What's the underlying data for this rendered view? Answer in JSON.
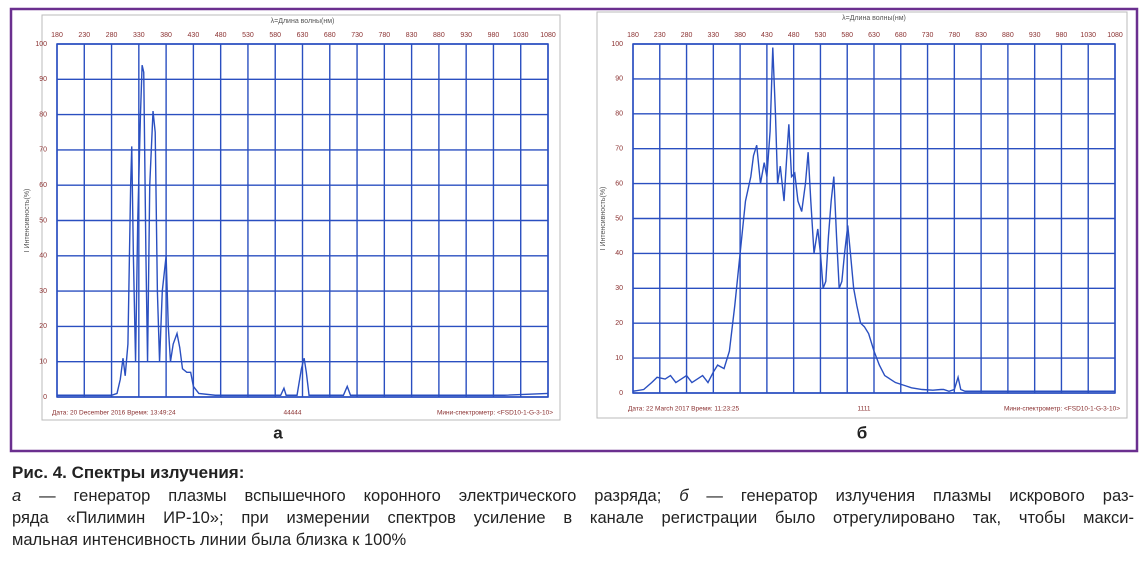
{
  "chart_data": [
    {
      "type": "line",
      "xlabel": "λ=Длина волны(нм)",
      "ylabel": "I Интенсивность(%)",
      "panel_label": "а",
      "footer": {
        "date": "Дата: 20 December 2016   Время: 13:49:24",
        "sample": "44444",
        "device": "Мини-спектрометр: <FSD10-1-G-3-10>"
      },
      "x": [
        180,
        230,
        280,
        290,
        296,
        301,
        305,
        310,
        315,
        317,
        320,
        324,
        328,
        333,
        336,
        339,
        343,
        346,
        350,
        356,
        360,
        364,
        368,
        373,
        380,
        384,
        388,
        393,
        400,
        405,
        410,
        418,
        425,
        430,
        440,
        470,
        590,
        596,
        600,
        620,
        628,
        633,
        637,
        642,
        705,
        712,
        718,
        800,
        1000,
        1080
      ],
      "series": [
        {
          "color": "#2a4fc0",
          "values": [
            0.5,
            0.5,
            0.5,
            1,
            5,
            11,
            6,
            15,
            60,
            71,
            40,
            10,
            50,
            80,
            94,
            92,
            40,
            10,
            60,
            81,
            75,
            30,
            10,
            30,
            40,
            20,
            10,
            15,
            18,
            14,
            8,
            7,
            7,
            3,
            1,
            0.5,
            0.5,
            2.5,
            0.5,
            0.5,
            8,
            11,
            7,
            0.5,
            0.5,
            3,
            0.5,
            0.5,
            0.5,
            1
          ]
        }
      ],
      "xlim": [
        180,
        1080
      ],
      "ylim": [
        0,
        100
      ],
      "xticks": [
        180,
        230,
        280,
        330,
        380,
        430,
        480,
        530,
        580,
        630,
        680,
        730,
        780,
        830,
        880,
        930,
        980,
        1030,
        1080
      ],
      "yticks": [
        0,
        10,
        20,
        30,
        40,
        50,
        60,
        70,
        80,
        90,
        100
      ],
      "grid": true
    },
    {
      "type": "line",
      "xlabel": "λ=Длина волны(нм)",
      "ylabel": "I Интенсивность(%)",
      "panel_label": "б",
      "footer": {
        "date": "Дата: 22 March 2017   Время: 11:23:25",
        "sample": "1111",
        "device": "Мини-спектрометр: <FSD10-1-G-3-10>"
      },
      "x": [
        180,
        200,
        215,
        225,
        240,
        250,
        260,
        270,
        280,
        290,
        300,
        310,
        320,
        330,
        338,
        350,
        360,
        370,
        380,
        390,
        400,
        405,
        411,
        418,
        425,
        430,
        436,
        441,
        446,
        450,
        455,
        462,
        468,
        471,
        476,
        482,
        488,
        495,
        502,
        507,
        512,
        518,
        525,
        530,
        535,
        540,
        545,
        550,
        555,
        560,
        565,
        570,
        575,
        581,
        586,
        592,
        598,
        605,
        612,
        620,
        630,
        640,
        650,
        660,
        670,
        680,
        690,
        700,
        720,
        740,
        755,
        760,
        770,
        780,
        787,
        792,
        800,
        900,
        1080
      ],
      "series": [
        {
          "color": "#2a4fc0",
          "values": [
            0.5,
            1,
            3,
            4.5,
            4,
            5,
            3,
            4,
            5,
            3,
            4,
            5,
            3,
            6,
            8,
            7,
            12,
            25,
            40,
            55,
            62,
            68,
            71,
            60,
            66,
            62,
            75,
            99,
            80,
            60,
            65,
            55,
            70,
            77,
            62,
            63,
            55,
            52,
            60,
            69,
            55,
            40,
            47,
            40,
            30,
            32,
            45,
            55,
            62,
            45,
            30,
            32,
            40,
            48,
            40,
            30,
            25,
            20,
            19,
            17,
            12,
            8,
            5,
            4,
            3,
            2.5,
            2,
            1.5,
            1,
            0.8,
            1,
            1,
            0.5,
            1,
            4.5,
            1,
            0.5,
            0.5,
            0.5
          ]
        }
      ],
      "xlim": [
        180,
        1080
      ],
      "ylim": [
        0,
        100
      ],
      "xticks": [
        180,
        230,
        280,
        330,
        380,
        430,
        480,
        530,
        580,
        630,
        680,
        730,
        780,
        830,
        880,
        930,
        980,
        1030,
        1080
      ],
      "yticks": [
        0,
        10,
        20,
        30,
        40,
        50,
        60,
        70,
        80,
        90,
        100
      ],
      "grid": true
    }
  ],
  "caption": {
    "title": "Рис. 4. Спектры излучения:",
    "lines": [
      [
        "а",
        " — генератор плазмы вспышечного коронного электрического разряда; ",
        "б",
        " — генератор излучения плазмы искрового раз-"
      ],
      [
        "ряда «Пилимин ИР-10»; при измерении спектров усиление в канале регистрации было отрегулировано так, чтобы макси-"
      ],
      [
        "мальная интенсивность линии была близка к 100%"
      ]
    ],
    "italic_segments": [
      [
        0,
        0
      ],
      [
        0,
        2
      ]
    ]
  }
}
